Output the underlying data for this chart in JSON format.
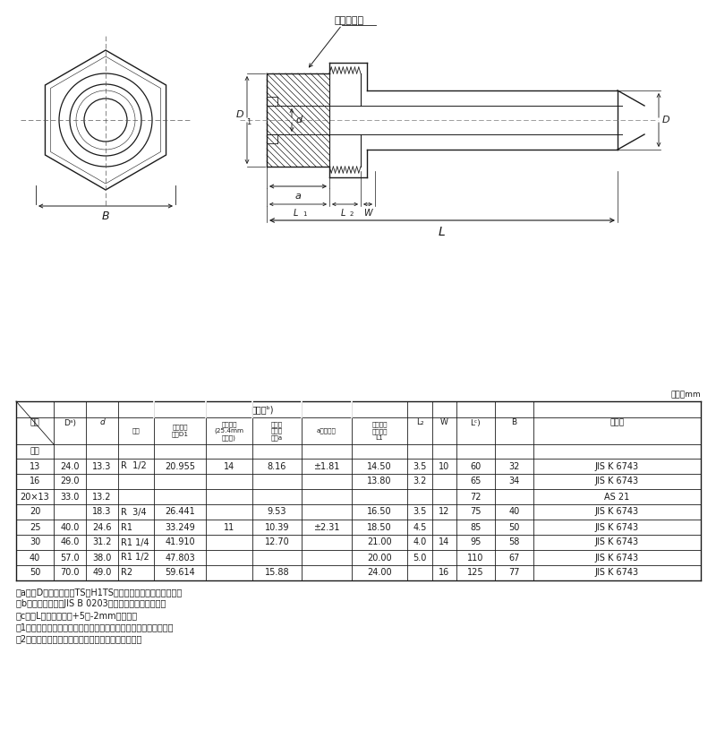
{
  "bg_color": "#ffffff",
  "line_color": "#1a1a1a",
  "unit_label": "単位：mm",
  "rows": [
    [
      "13",
      "24.0",
      "13.3",
      "R  1/2",
      "20.955",
      "14",
      "8.16",
      "±1.81",
      "14.50",
      "3.5",
      "10",
      "60",
      "32",
      "JIS K 6743"
    ],
    [
      "16",
      "29.0",
      "",
      "",
      "",
      "",
      "",
      "",
      "13.80",
      "3.2",
      "",
      "65",
      "34",
      "JIS K 6743"
    ],
    [
      "20×13",
      "33.0",
      "13.2",
      "",
      "",
      "",
      "",
      "",
      "",
      "",
      "",
      "72",
      "",
      "AS 21"
    ],
    [
      "20",
      "",
      "18.3",
      "R  3/4",
      "26.441",
      "",
      "9.53",
      "",
      "16.50",
      "3.5",
      "12",
      "75",
      "40",
      "JIS K 6743"
    ],
    [
      "25",
      "40.0",
      "24.6",
      "R1",
      "33.249",
      "11",
      "10.39",
      "±2.31",
      "18.50",
      "4.5",
      "",
      "85",
      "50",
      "JIS K 6743"
    ],
    [
      "30",
      "46.0",
      "31.2",
      "R1 1/4",
      "41.910",
      "",
      "12.70",
      "",
      "21.00",
      "4.0",
      "14",
      "95",
      "58",
      "JIS K 6743"
    ],
    [
      "40",
      "57.0",
      "38.0",
      "R1 1/2",
      "47.803",
      "",
      "",
      "",
      "20.00",
      "5.0",
      "",
      "110",
      "67",
      "JIS K 6743"
    ],
    [
      "50",
      "70.0",
      "49.0",
      "R2",
      "59.614",
      "",
      "15.88",
      "",
      "24.00",
      "",
      "16",
      "125",
      "77",
      "JIS K 6743"
    ]
  ],
  "notes": [
    "注a）　Dの許容差は、TS・H1TS継手受口共通寸法図による。",
    "注b）　ねじ部は、JIS B 0203のテーパおねじとする。",
    "注c）　Lの許容差は、+5／-2mmとする。",
    "注1．六角部及び内部の接水部は、硬質ポリ塩化ビニル製である．",
    "注2．管端防食継手（コア付き）に対応しています。"
  ],
  "insert_label": "インサート",
  "header_kikugo": "記号",
  "header_yobikei": "呼径",
  "header_Da": "D",
  "header_d": "d",
  "header_nejibu": "ねじ部",
  "header_yobi": "呼び",
  "header_kijun_d1": "基準径の\n外径D1",
  "header_nejiyama": "ねじ山数\n(25.4mm\nにつき)",
  "header_kijun_a": "基準径\nまでの\n長さa",
  "header_kyoyo": "aの許容差",
  "header_yuko": "有効ねじ\n部の長さ\nL1",
  "header_L2": "L₂",
  "header_W": "W",
  "header_Lc": "L",
  "header_B": "B",
  "header_kikaku": "規　格"
}
